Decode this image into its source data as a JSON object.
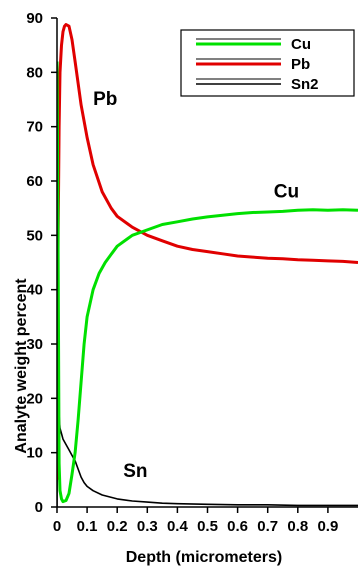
{
  "chart_data": {
    "type": "line",
    "title": "",
    "xlabel": "Depth (micrometers)",
    "ylabel": "Analyte weight percent",
    "xlim": [
      0,
      1.0
    ],
    "ylim": [
      0,
      90
    ],
    "xtick_labels": [
      "0",
      "0.1",
      "0.2",
      "0.3",
      "0.4",
      "0.5",
      "0.6",
      "0.7",
      "0.8",
      "0.9"
    ],
    "xticks": [
      0,
      0.1,
      0.2,
      0.3,
      0.4,
      0.5,
      0.6,
      0.7,
      0.8,
      0.9
    ],
    "ytick_labels": [
      "0",
      "10",
      "20",
      "30",
      "40",
      "50",
      "60",
      "70",
      "80",
      "90"
    ],
    "yticks": [
      0,
      10,
      20,
      30,
      40,
      50,
      60,
      70,
      80,
      90
    ],
    "grid": false,
    "legend_position": "top-right",
    "series": [
      {
        "name": "Cu",
        "color": "#00e000",
        "x": [
          0,
          0.003,
          0.007,
          0.01,
          0.015,
          0.02,
          0.03,
          0.04,
          0.05,
          0.06,
          0.07,
          0.08,
          0.09,
          0.1,
          0.12,
          0.14,
          0.16,
          0.18,
          0.2,
          0.25,
          0.3,
          0.35,
          0.4,
          0.45,
          0.5,
          0.55,
          0.6,
          0.65,
          0.7,
          0.75,
          0.8,
          0.85,
          0.9,
          0.95,
          1.0
        ],
        "y": [
          82,
          55,
          8,
          3,
          1.5,
          1,
          1.2,
          2.5,
          6,
          10,
          16,
          23,
          30,
          35,
          40,
          43,
          45,
          46.5,
          48,
          50,
          51,
          52,
          52.5,
          53,
          53.4,
          53.7,
          54,
          54.2,
          54.3,
          54.4,
          54.6,
          54.7,
          54.6,
          54.7,
          54.6
        ]
      },
      {
        "name": "Pb",
        "color": "#e00000",
        "x": [
          0,
          0.003,
          0.007,
          0.01,
          0.015,
          0.02,
          0.025,
          0.03,
          0.04,
          0.05,
          0.06,
          0.07,
          0.08,
          0.1,
          0.12,
          0.15,
          0.18,
          0.2,
          0.25,
          0.3,
          0.35,
          0.4,
          0.45,
          0.5,
          0.55,
          0.6,
          0.65,
          0.7,
          0.75,
          0.8,
          0.85,
          0.9,
          0.95,
          1.0
        ],
        "y": [
          5,
          45,
          70,
          80,
          85,
          87.5,
          88.5,
          88.8,
          88.5,
          86,
          82,
          78,
          74,
          68,
          63,
          58,
          55,
          53.5,
          51.5,
          50,
          49,
          48,
          47.4,
          47,
          46.6,
          46.2,
          46,
          45.8,
          45.7,
          45.5,
          45.4,
          45.3,
          45.2,
          45.0
        ]
      },
      {
        "name": "Sn2",
        "color": "#000000",
        "x": [
          0,
          0.002,
          0.004,
          0.006,
          0.008,
          0.01,
          0.015,
          0.02,
          0.03,
          0.04,
          0.05,
          0.06,
          0.07,
          0.08,
          0.09,
          0.1,
          0.12,
          0.15,
          0.2,
          0.25,
          0.3,
          0.35,
          0.4,
          0.5,
          0.6,
          0.7,
          0.8,
          0.9,
          1.0
        ],
        "y": [
          0,
          33,
          24,
          18,
          16,
          14.5,
          13.5,
          12.5,
          11.5,
          10.5,
          9.5,
          8.5,
          7,
          5.5,
          4.5,
          3.8,
          3,
          2.2,
          1.5,
          1.1,
          0.9,
          0.7,
          0.6,
          0.5,
          0.4,
          0.4,
          0.3,
          0.3,
          0.3
        ]
      }
    ],
    "annotations": [
      {
        "text": "Pb",
        "x": 0.12,
        "y": 74
      },
      {
        "text": "Cu",
        "x": 0.72,
        "y": 57
      },
      {
        "text": "Sn",
        "x": 0.22,
        "y": 5.5
      }
    ]
  }
}
